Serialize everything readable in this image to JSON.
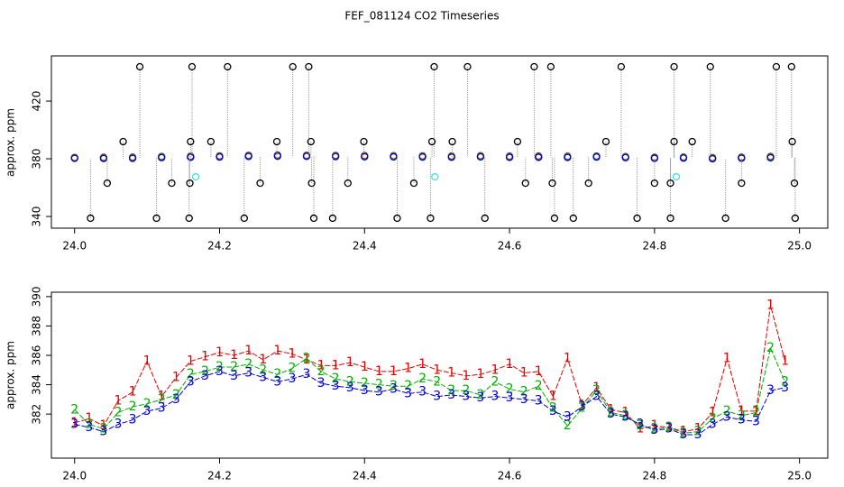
{
  "chart_data": [
    {
      "type": "scatter",
      "title": "FEF_081124  CO2 Timeseries",
      "ylabel": "approx. ppm",
      "xlim": [
        23.968,
        25.039
      ],
      "ylim": [
        331.9,
        451.3
      ],
      "xticks": [
        {
          "value": 24,
          "label": "24.0"
        },
        24.2,
        24.4,
        24.6,
        24.8,
        {
          "value": 25,
          "label": "25.0"
        }
      ],
      "yticks": [
        340,
        380,
        420
      ],
      "x": [
        24.0,
        24.04,
        24.08,
        24.12,
        24.16,
        24.2,
        24.24,
        24.28,
        24.32,
        24.36,
        24.4,
        24.44,
        24.48,
        24.52,
        24.56,
        24.6,
        24.64,
        24.68,
        24.72,
        24.76,
        24.8,
        24.84,
        24.88,
        24.92,
        24.96
      ],
      "series": [
        {
          "color": "#e00000",
          "values": [
            380.9,
            381.0,
            381.1,
            381.6,
            381.8,
            382.0,
            382.4,
            382.6,
            382.4,
            382.3,
            382.2,
            382.1,
            382.0,
            381.9,
            382.1,
            381.8,
            381.9,
            381.7,
            381.9,
            381.5,
            381.0,
            381.2,
            380.8,
            381.1,
            381.6
          ]
        },
        {
          "color": "#00b000",
          "values": [
            380.6,
            380.6,
            380.7,
            381.3,
            381.4,
            381.6,
            382.0,
            382.2,
            382.0,
            381.9,
            381.8,
            381.7,
            381.6,
            381.5,
            381.7,
            381.4,
            381.4,
            381.3,
            381.6,
            381.2,
            380.6,
            380.9,
            380.4,
            380.8,
            381.2
          ]
        },
        {
          "color": "#0000d0",
          "values": [
            380.3,
            380.2,
            380.3,
            380.8,
            381.0,
            381.2,
            381.6,
            381.8,
            381.7,
            381.5,
            381.4,
            381.3,
            381.2,
            381.1,
            381.3,
            381.0,
            381.0,
            380.9,
            381.2,
            380.8,
            380.3,
            380.5,
            380.0,
            380.4,
            380.7
          ]
        },
        {
          "color": "#000000",
          "connector": "#999999",
          "x": [
            24.09,
            24.162,
            24.211,
            24.301,
            24.323,
            24.496,
            24.542,
            24.634,
            24.657,
            24.754,
            24.827,
            24.877,
            24.968,
            24.989,
            24.022,
            24.113,
            24.158,
            24.234,
            24.33,
            24.356,
            24.445,
            24.491,
            24.566,
            24.662,
            24.688,
            24.776,
            24.822,
            24.898,
            24.994,
            24.045,
            24.134,
            24.159,
            24.256,
            24.327,
            24.377,
            24.468,
            24.622,
            24.659,
            24.709,
            24.8,
            24.822,
            24.92,
            24.993,
            24.067,
            24.16,
            24.188,
            24.279,
            24.326,
            24.399,
            24.493,
            24.521,
            24.611,
            24.733,
            24.827,
            24.852,
            24.99
          ],
          "values": [
            443.8,
            443.8,
            443.8,
            443.8,
            443.8,
            443.8,
            443.8,
            443.8,
            443.8,
            443.8,
            443.8,
            443.8,
            443.8,
            443.8,
            338.8,
            338.8,
            338.8,
            338.8,
            338.8,
            338.8,
            338.8,
            338.8,
            338.8,
            338.8,
            338.8,
            338.8,
            338.8,
            338.8,
            338.8,
            363.1,
            363.1,
            363.1,
            363.1,
            363.1,
            363.1,
            363.1,
            363.1,
            363.1,
            363.1,
            363.1,
            363.1,
            363.1,
            363.1,
            391.9,
            391.9,
            391.9,
            391.9,
            391.9,
            391.9,
            391.9,
            391.9,
            391.9,
            391.9,
            391.9,
            391.9,
            391.9
          ]
        },
        {
          "color": "#40e0e0",
          "x": [
            24.167,
            24.497,
            24.83
          ],
          "values": [
            367.5,
            367.5,
            367.5
          ]
        }
      ]
    },
    {
      "type": "line",
      "ylabel": "approx. ppm",
      "xlim": [
        23.968,
        25.039
      ],
      "ylim": [
        379,
        390.3
      ],
      "xticks": [
        {
          "value": 24,
          "label": "24.0"
        },
        24.2,
        24.4,
        24.6,
        24.8,
        {
          "value": 25,
          "label": "25.0"
        }
      ],
      "yticks": [
        382,
        384,
        386,
        388,
        390
      ],
      "x": [
        24.0,
        24.02,
        24.04,
        24.06,
        24.08,
        24.1,
        24.12,
        24.14,
        24.16,
        24.18,
        24.2,
        24.22,
        24.24,
        24.26,
        24.28,
        24.3,
        24.32,
        24.34,
        24.36,
        24.38,
        24.4,
        24.42,
        24.44,
        24.46,
        24.48,
        24.5,
        24.52,
        24.54,
        24.56,
        24.58,
        24.6,
        24.62,
        24.64,
        24.66,
        24.68,
        24.7,
        24.72,
        24.74,
        24.76,
        24.78,
        24.8,
        24.82,
        24.84,
        24.86,
        24.88,
        24.9,
        24.92,
        24.94,
        24.96,
        24.98
      ],
      "series": [
        {
          "name": "1",
          "color": "#e00000",
          "values": [
            381.4,
            381.7,
            381.2,
            382.9,
            383.5,
            385.6,
            383.2,
            384.5,
            385.6,
            385.9,
            386.2,
            386.0,
            386.3,
            385.7,
            386.3,
            386.1,
            385.7,
            385.3,
            385.3,
            385.5,
            385.2,
            384.9,
            384.9,
            385.1,
            385.4,
            385.0,
            384.8,
            384.6,
            384.7,
            385.0,
            385.4,
            384.8,
            384.9,
            383.2,
            385.8,
            382.6,
            383.8,
            382.3,
            382.1,
            381.0,
            381.2,
            381.1,
            380.8,
            381.0,
            382.1,
            385.8,
            382.2,
            382.2,
            389.4,
            385.6
          ]
        },
        {
          "name": "2",
          "color": "#00b000",
          "values": [
            382.3,
            381.3,
            381.0,
            382.1,
            382.5,
            382.7,
            383.0,
            383.3,
            384.7,
            384.9,
            385.2,
            385.2,
            385.4,
            385.0,
            384.7,
            385.1,
            385.8,
            384.9,
            384.4,
            384.2,
            384.1,
            384.0,
            383.9,
            383.9,
            384.4,
            384.2,
            383.6,
            383.6,
            383.3,
            384.2,
            383.7,
            383.5,
            383.9,
            382.4,
            381.2,
            382.4,
            383.6,
            382.1,
            381.9,
            381.2,
            381.0,
            381.1,
            380.7,
            380.8,
            381.7,
            382.2,
            381.9,
            382.1,
            386.5,
            384.2
          ]
        },
        {
          "name": "3",
          "color": "#0000d0",
          "values": [
            381.3,
            381.1,
            380.8,
            381.3,
            381.6,
            382.2,
            382.4,
            383.0,
            384.2,
            384.6,
            384.9,
            384.6,
            384.8,
            384.5,
            384.2,
            384.4,
            384.7,
            384.1,
            383.9,
            383.8,
            383.6,
            383.5,
            383.7,
            383.4,
            383.5,
            383.2,
            383.3,
            383.2,
            383.1,
            383.2,
            383.1,
            383.0,
            382.9,
            382.2,
            381.8,
            382.5,
            383.2,
            382.0,
            381.8,
            381.3,
            380.9,
            381.0,
            380.6,
            380.6,
            381.3,
            381.8,
            381.6,
            381.5,
            383.6,
            383.8
          ]
        }
      ]
    }
  ]
}
